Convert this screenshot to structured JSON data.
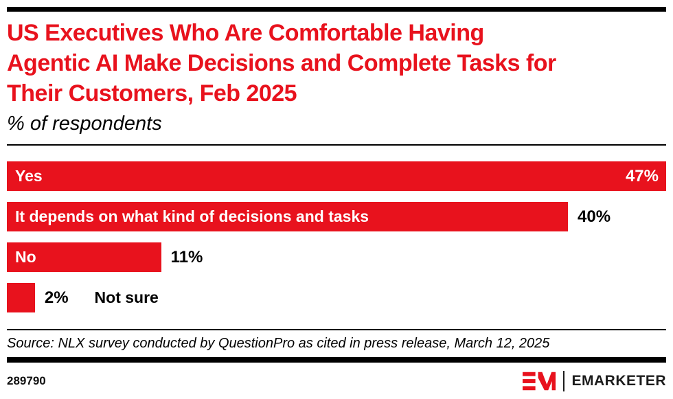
{
  "header": {
    "title_lines": [
      "US Executives Who Are Comfortable Having",
      "Agentic AI Make Decisions and Complete Tasks for",
      "Their Customers, Feb 2025"
    ],
    "subtitle": "% of respondents"
  },
  "chart_data": {
    "type": "bar",
    "orientation": "horizontal",
    "title": "US Executives Who Are Comfortable Having Agentic AI Make Decisions and Complete Tasks for Their Customers, Feb 2025",
    "subtitle": "% of respondents",
    "unit": "%",
    "categories": [
      "Yes",
      "It depends on what kind of decisions and tasks",
      "No",
      "Not sure"
    ],
    "values": [
      47,
      40,
      11,
      2
    ],
    "scale_max": 47,
    "grid": false,
    "legend": false,
    "bars": [
      {
        "label": "Yes",
        "value": 47,
        "display_value": "47%",
        "label_inside": true,
        "value_inside": true
      },
      {
        "label": "It depends on what kind of decisions and tasks",
        "value": 40,
        "display_value": "40%",
        "label_inside": true,
        "value_inside": false
      },
      {
        "label": "No",
        "value": 11,
        "display_value": "11%",
        "label_inside": true,
        "value_inside": false
      },
      {
        "label": "Not sure",
        "value": 2,
        "display_value": "2%",
        "label_inside": false,
        "value_inside": false
      }
    ]
  },
  "footer": {
    "source": "Source: NLX survey conducted by QuestionPro as cited in press release, March 12, 2025",
    "chart_id": "289790",
    "brand_name": "EMARKETER"
  },
  "colors": {
    "accent_red": "#E8121D",
    "bar_label_white": "#FFFFFF",
    "text_black": "#000000",
    "logo_dark": "#1B1B1B"
  }
}
